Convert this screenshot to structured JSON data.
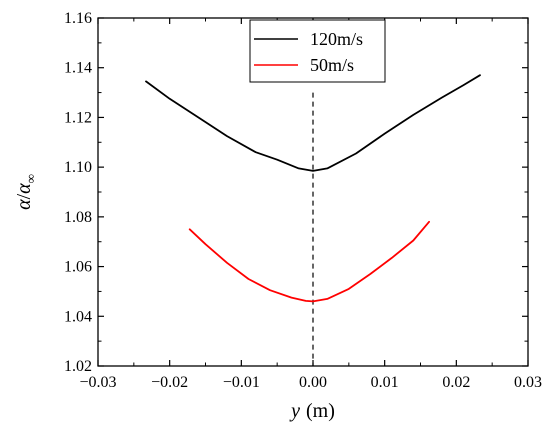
{
  "chart_data": {
    "type": "line",
    "xlabel_var": "y",
    "xlabel_unit": "(m)",
    "ylabel_alpha": "α",
    "ylabel_sep": "/",
    "ylabel_sub": "∞",
    "xlim": [
      -0.03,
      0.03
    ],
    "ylim": [
      1.02,
      1.16
    ],
    "xticks": [
      -0.03,
      -0.02,
      -0.01,
      0.0,
      0.01,
      0.02,
      0.03
    ],
    "xtick_labels": [
      "−0.03",
      "−0.02",
      "−0.01",
      "0.00",
      "0.01",
      "0.02",
      "0.03"
    ],
    "yticks": [
      1.02,
      1.04,
      1.06,
      1.08,
      1.1,
      1.12,
      1.14,
      1.16
    ],
    "ytick_labels": [
      "1.02",
      "1.04",
      "1.06",
      "1.08",
      "1.10",
      "1.12",
      "1.14",
      "1.16"
    ],
    "grid": false,
    "legend_position": "top-center",
    "reference_line": {
      "x": 0.0,
      "y_range": [
        1.02,
        1.13
      ],
      "style": "dashed",
      "color": "#000000"
    },
    "series": [
      {
        "name": "120m/s",
        "color": "#000000",
        "x": [
          -0.0233,
          -0.02,
          -0.016,
          -0.012,
          -0.008,
          -0.005,
          -0.002,
          0.0,
          0.002,
          0.006,
          0.01,
          0.014,
          0.018,
          0.021,
          0.0233
        ],
        "y": [
          1.1345,
          1.1275,
          1.12,
          1.1125,
          1.106,
          1.103,
          1.0995,
          1.0985,
          1.0995,
          1.1055,
          1.1135,
          1.121,
          1.128,
          1.133,
          1.137
        ]
      },
      {
        "name": "50m/s",
        "color": "#ff0000",
        "x": [
          -0.0172,
          -0.015,
          -0.012,
          -0.009,
          -0.006,
          -0.003,
          -0.001,
          0.0,
          0.002,
          0.005,
          0.008,
          0.011,
          0.014,
          0.0162
        ],
        "y": [
          1.075,
          1.069,
          1.0615,
          1.055,
          1.0505,
          1.0475,
          1.0462,
          1.046,
          1.047,
          1.051,
          1.057,
          1.0635,
          1.0705,
          1.078
        ]
      }
    ]
  }
}
